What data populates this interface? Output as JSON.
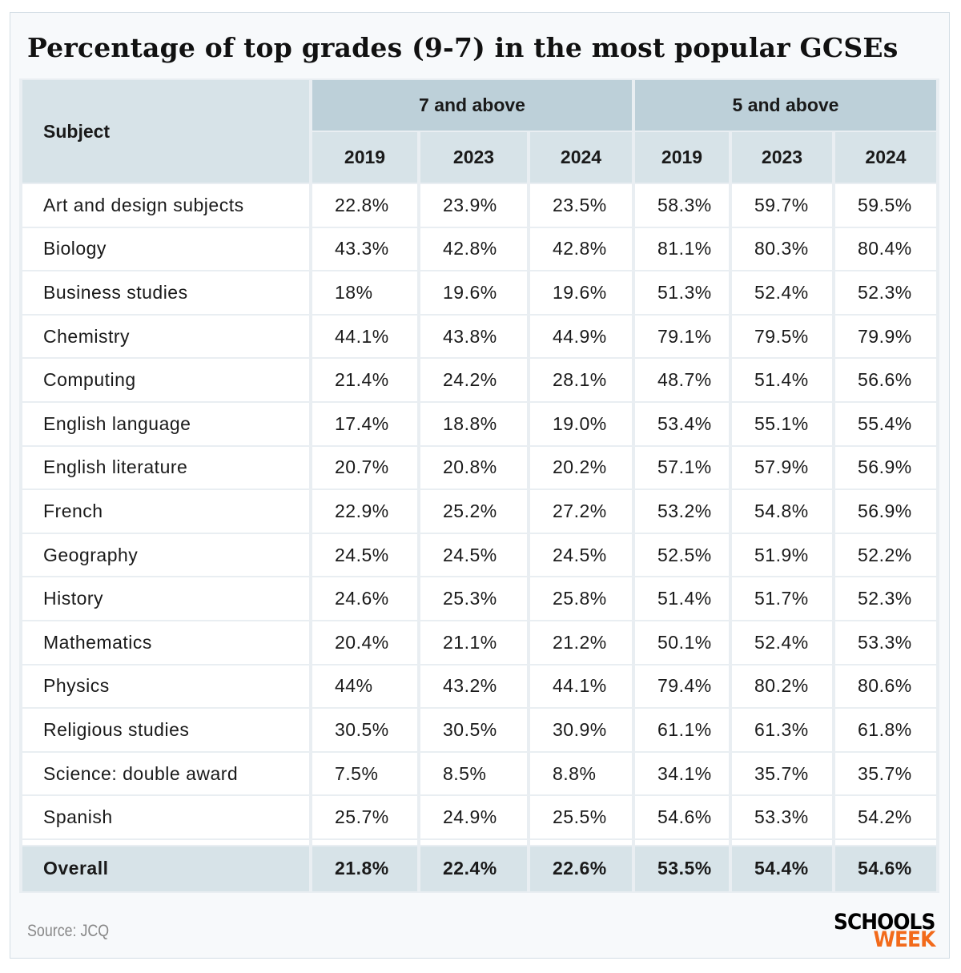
{
  "title": "Percentage of top grades (9-7) in the most popular GCSEs",
  "table": {
    "subject_header": "Subject",
    "groups": [
      "7 and above",
      "5 and above"
    ],
    "years": [
      "2019",
      "2023",
      "2024",
      "2019",
      "2023",
      "2024"
    ],
    "rows": [
      {
        "subject": "Art and design subjects",
        "values": [
          "22.8%",
          "23.9%",
          "23.5%",
          "58.3%",
          "59.7%",
          "59.5%"
        ]
      },
      {
        "subject": "Biology",
        "values": [
          "43.3%",
          "42.8%",
          "42.8%",
          "81.1%",
          "80.3%",
          "80.4%"
        ]
      },
      {
        "subject": "Business studies",
        "values": [
          "18%",
          "19.6%",
          "19.6%",
          "51.3%",
          "52.4%",
          "52.3%"
        ]
      },
      {
        "subject": "Chemistry",
        "values": [
          "44.1%",
          "43.8%",
          "44.9%",
          "79.1%",
          "79.5%",
          "79.9%"
        ]
      },
      {
        "subject": "Computing",
        "values": [
          "21.4%",
          "24.2%",
          "28.1%",
          "48.7%",
          "51.4%",
          "56.6%"
        ]
      },
      {
        "subject": "English language",
        "values": [
          "17.4%",
          "18.8%",
          "19.0%",
          "53.4%",
          "55.1%",
          "55.4%"
        ]
      },
      {
        "subject": "English literature",
        "values": [
          "20.7%",
          "20.8%",
          "20.2%",
          "57.1%",
          "57.9%",
          "56.9%"
        ]
      },
      {
        "subject": "French",
        "values": [
          "22.9%",
          "25.2%",
          "27.2%",
          "53.2%",
          "54.8%",
          "56.9%"
        ]
      },
      {
        "subject": "Geography",
        "values": [
          "24.5%",
          "24.5%",
          "24.5%",
          "52.5%",
          "51.9%",
          "52.2%"
        ]
      },
      {
        "subject": "History",
        "values": [
          "24.6%",
          "25.3%",
          "25.8%",
          "51.4%",
          "51.7%",
          "52.3%"
        ]
      },
      {
        "subject": "Mathematics",
        "values": [
          "20.4%",
          "21.1%",
          "21.2%",
          "50.1%",
          "52.4%",
          "53.3%"
        ]
      },
      {
        "subject": "Physics",
        "values": [
          "44%",
          "43.2%",
          "44.1%",
          "79.4%",
          "80.2%",
          "80.6%"
        ]
      },
      {
        "subject": "Religious studies",
        "values": [
          "30.5%",
          "30.5%",
          "30.9%",
          "61.1%",
          "61.3%",
          "61.8%"
        ]
      },
      {
        "subject": "Science: double award",
        "values": [
          "7.5%",
          "8.5%",
          "8.8%",
          "34.1%",
          "35.7%",
          "35.7%"
        ]
      },
      {
        "subject": "Spanish",
        "values": [
          "25.7%",
          "24.9%",
          "25.5%",
          "54.6%",
          "53.3%",
          "54.2%"
        ]
      }
    ],
    "overall": {
      "subject": "Overall",
      "values": [
        "21.8%",
        "22.4%",
        "22.6%",
        "53.5%",
        "54.4%",
        "54.6%"
      ]
    }
  },
  "source": "Source: JCQ",
  "logo": {
    "line1": "SCHOOLS",
    "line2": "WEEK"
  },
  "colors": {
    "header": "#d7e3e8",
    "group_header": "#bdd0d9",
    "logo_accent": "#f26a1b"
  }
}
